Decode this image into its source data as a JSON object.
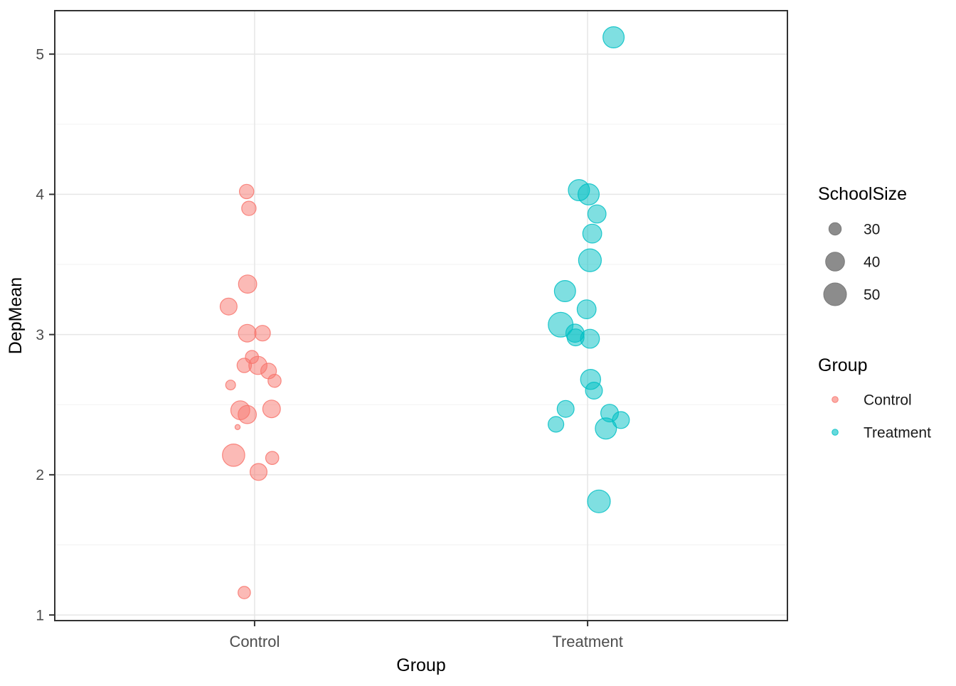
{
  "chart_data": {
    "type": "scatter",
    "title": "",
    "xlabel": "Group",
    "ylabel": "DepMean",
    "categories": [
      "Control",
      "Treatment"
    ],
    "yticks": [
      "1",
      "2",
      "3",
      "4",
      "5"
    ],
    "ytick_values": [
      1,
      2,
      3,
      4,
      5
    ],
    "yminor_values": [
      1.5,
      2.5,
      3.5,
      4.5
    ],
    "ylim": [
      0.96,
      5.31
    ],
    "xlim": [
      0.4,
      2.6
    ],
    "grid": "on",
    "legend_position": "right",
    "colors": {
      "control": "#F8766D",
      "treatment": "#00BFC4",
      "legend_key_gray": "#8C8C8C",
      "grid_major": "#E6E6E6",
      "grid_minor": "#F2F2F2",
      "panel_border": "#333333",
      "tick_text": "#4D4D4D",
      "title_text": "#000000"
    },
    "series": [
      {
        "name": "Control",
        "color": "#F8766D",
        "x_category": 1,
        "points": [
          {
            "y": 4.02,
            "size": 33,
            "jx": -0.024
          },
          {
            "y": 3.9,
            "size": 33,
            "jx": -0.017
          },
          {
            "y": 3.36,
            "size": 39,
            "jx": -0.021
          },
          {
            "y": 3.2,
            "size": 37,
            "jx": -0.078
          },
          {
            "y": 3.01,
            "size": 38,
            "jx": -0.022
          },
          {
            "y": 3.01,
            "size": 35,
            "jx": 0.024
          },
          {
            "y": 2.84,
            "size": 31,
            "jx": -0.008
          },
          {
            "y": 2.78,
            "size": 33,
            "jx": -0.031
          },
          {
            "y": 2.78,
            "size": 39,
            "jx": 0.01
          },
          {
            "y": 2.74,
            "size": 35,
            "jx": 0.042
          },
          {
            "y": 2.67,
            "size": 31,
            "jx": 0.06
          },
          {
            "y": 2.64,
            "size": 26,
            "jx": -0.072
          },
          {
            "y": 2.46,
            "size": 40,
            "jx": -0.043
          },
          {
            "y": 2.43,
            "size": 39,
            "jx": -0.022
          },
          {
            "y": 2.47,
            "size": 38,
            "jx": 0.051
          },
          {
            "y": 2.34,
            "size": 19,
            "jx": -0.051
          },
          {
            "y": 2.14,
            "size": 49,
            "jx": -0.063
          },
          {
            "y": 2.12,
            "size": 31,
            "jx": 0.053
          },
          {
            "y": 2.02,
            "size": 37,
            "jx": 0.012
          },
          {
            "y": 1.16,
            "size": 30,
            "jx": -0.031
          }
        ]
      },
      {
        "name": "Treatment",
        "color": "#00BFC4",
        "x_category": 2,
        "points": [
          {
            "y": 5.12,
            "size": 46,
            "jx": 0.078
          },
          {
            "y": 4.03,
            "size": 46,
            "jx": -0.026
          },
          {
            "y": 4.0,
            "size": 46,
            "jx": 0.003
          },
          {
            "y": 3.86,
            "size": 39,
            "jx": 0.028
          },
          {
            "y": 3.72,
            "size": 40,
            "jx": 0.014
          },
          {
            "y": 3.53,
            "size": 50,
            "jx": 0.007
          },
          {
            "y": 3.31,
            "size": 46,
            "jx": -0.068
          },
          {
            "y": 3.18,
            "size": 40,
            "jx": -0.003
          },
          {
            "y": 3.07,
            "size": 55,
            "jx": -0.081
          },
          {
            "y": 3.01,
            "size": 39,
            "jx": -0.038
          },
          {
            "y": 2.98,
            "size": 37,
            "jx": -0.036
          },
          {
            "y": 2.97,
            "size": 40,
            "jx": 0.007
          },
          {
            "y": 2.68,
            "size": 43,
            "jx": 0.009
          },
          {
            "y": 2.6,
            "size": 37,
            "jx": 0.019
          },
          {
            "y": 2.47,
            "size": 37,
            "jx": -0.066
          },
          {
            "y": 2.36,
            "size": 35,
            "jx": -0.095
          },
          {
            "y": 2.44,
            "size": 38,
            "jx": 0.066
          },
          {
            "y": 2.39,
            "size": 37,
            "jx": 0.1
          },
          {
            "y": 2.33,
            "size": 46,
            "jx": 0.055
          },
          {
            "y": 1.81,
            "size": 50,
            "jx": 0.034
          }
        ]
      }
    ],
    "size_legend": {
      "title": "SchoolSize",
      "entries": [
        "30",
        "40",
        "50"
      ],
      "entry_values": [
        30,
        40,
        50
      ]
    },
    "color_legend": {
      "title": "Group",
      "entries": [
        {
          "label": "Control",
          "color": "#F8766D"
        },
        {
          "label": "Treatment",
          "color": "#00BFC4"
        }
      ]
    }
  }
}
